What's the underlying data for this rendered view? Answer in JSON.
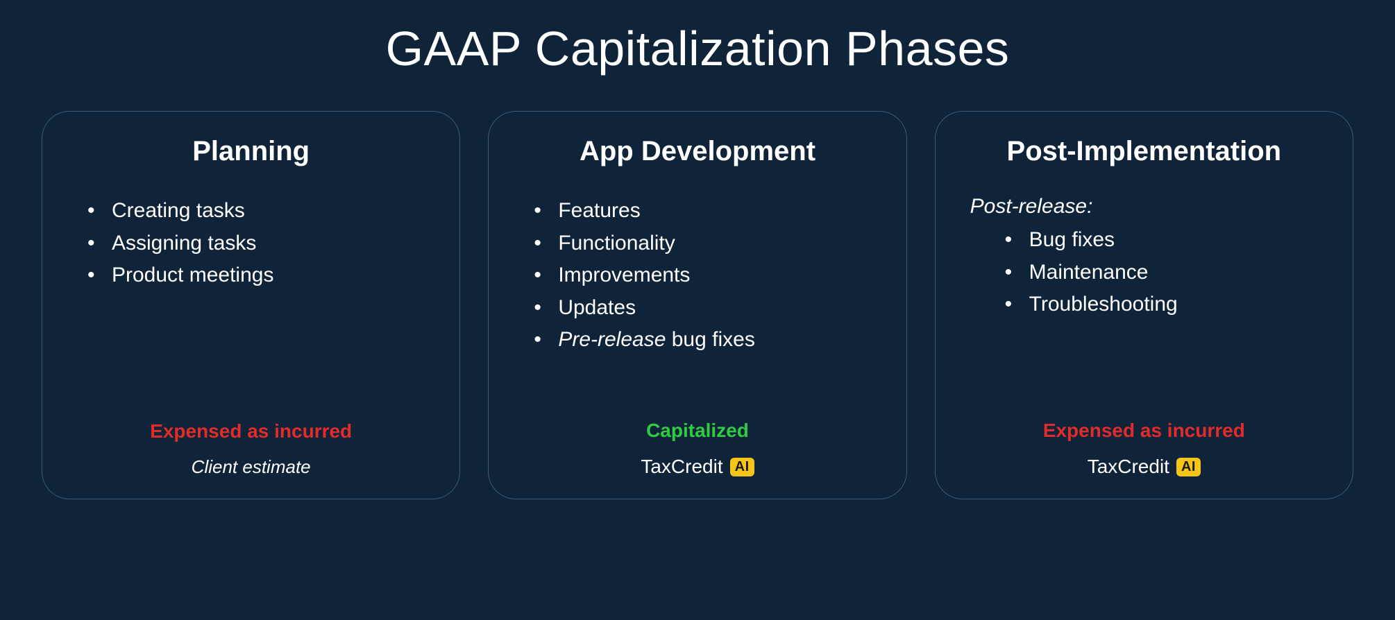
{
  "title": "GAAP Capitalization Phases",
  "colors": {
    "background": "#0f2438",
    "text": "#ffffff",
    "border": "#3a5a78",
    "expensed": "#e22b2b",
    "capitalized": "#2ecc40",
    "badge_bg": "#f5c518",
    "badge_text": "#1a1a1a"
  },
  "cards": [
    {
      "title": "Planning",
      "prefix": null,
      "items": [
        {
          "text": "Creating tasks",
          "italic": null
        },
        {
          "text": "Assigning tasks",
          "italic": null
        },
        {
          "text": "Product meetings",
          "italic": null
        }
      ],
      "status": "Expensed as incurred",
      "status_color": "#e22b2b",
      "footer_type": "text",
      "footer_text": "Client estimate"
    },
    {
      "title": "App Development",
      "prefix": null,
      "items": [
        {
          "text": "Features",
          "italic": null
        },
        {
          "text": "Functionality",
          "italic": null
        },
        {
          "text": "Improvements",
          "italic": null
        },
        {
          "text": "Updates",
          "italic": null
        },
        {
          "text": " bug fixes",
          "italic": "Pre-release"
        }
      ],
      "status": "Capitalized",
      "status_color": "#2ecc40",
      "footer_type": "brand",
      "brand_name": "TaxCredit",
      "brand_badge": "AI"
    },
    {
      "title": "Post-Implementation",
      "prefix": "Post-release:",
      "items": [
        {
          "text": "Bug fixes",
          "italic": null
        },
        {
          "text": "Maintenance",
          "italic": null
        },
        {
          "text": "Troubleshooting",
          "italic": null
        }
      ],
      "status": "Expensed as incurred",
      "status_color": "#e22b2b",
      "footer_type": "brand",
      "brand_name": "TaxCredit",
      "brand_badge": "AI"
    }
  ]
}
